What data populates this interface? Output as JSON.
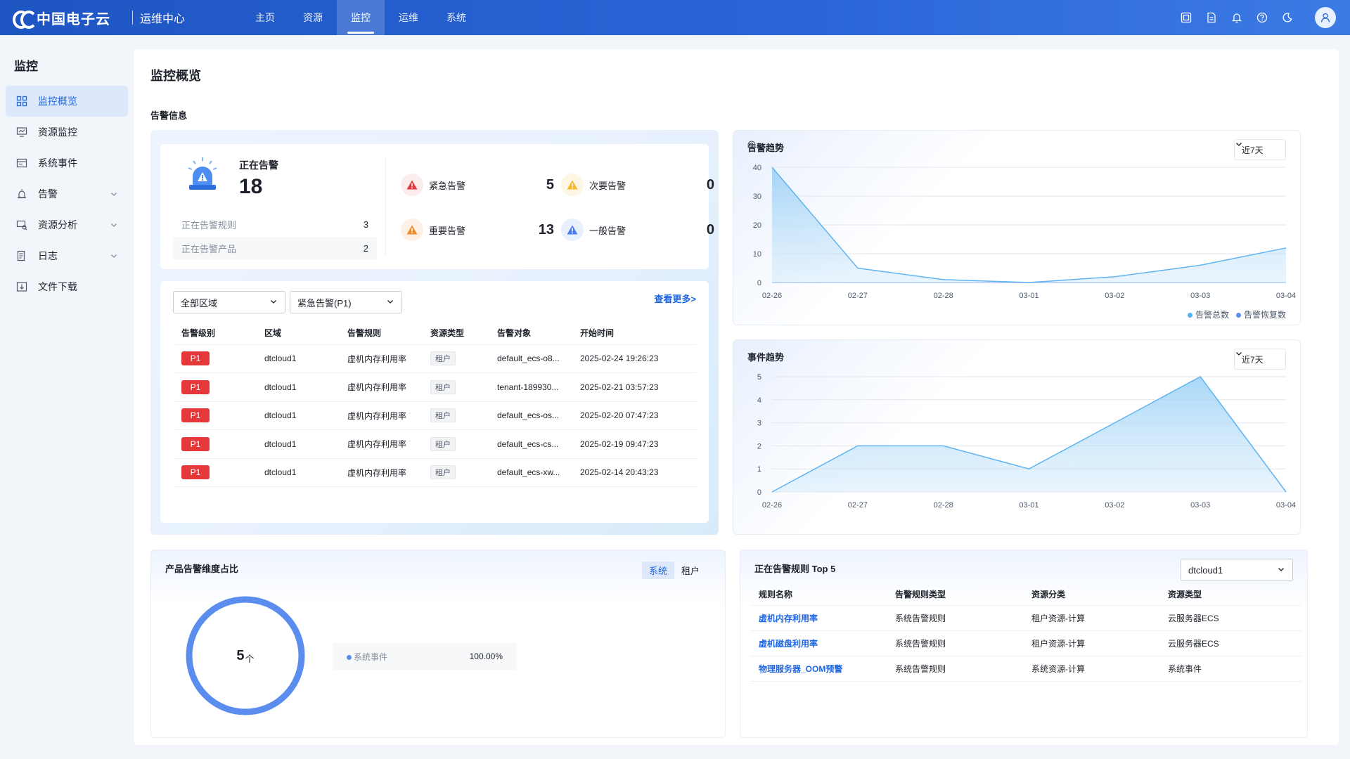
{
  "header": {
    "logo_text": "中国电子云",
    "app_name": "运维中心",
    "nav": [
      {
        "label": "主页",
        "active": false
      },
      {
        "label": "资源",
        "active": false
      },
      {
        "label": "监控",
        "active": true
      },
      {
        "label": "运维",
        "active": false
      },
      {
        "label": "系统",
        "active": false
      }
    ],
    "icons": [
      "screen-icon",
      "document-icon",
      "bell-icon",
      "help-icon",
      "moon-icon",
      "user-icon"
    ]
  },
  "sidebar": {
    "title": "监控",
    "items": [
      {
        "label": "监控概览",
        "icon": "grid-icon",
        "active": true,
        "expandable": false
      },
      {
        "label": "资源监控",
        "icon": "monitor-icon",
        "active": false,
        "expandable": false
      },
      {
        "label": "系统事件",
        "icon": "event-icon",
        "active": false,
        "expandable": false
      },
      {
        "label": "告警",
        "icon": "alarm-icon",
        "active": false,
        "expandable": true
      },
      {
        "label": "资源分析",
        "icon": "analysis-icon",
        "active": false,
        "expandable": true
      },
      {
        "label": "日志",
        "icon": "log-icon",
        "active": false,
        "expandable": true
      },
      {
        "label": "文件下载",
        "icon": "download-icon",
        "active": false,
        "expandable": false
      }
    ]
  },
  "page": {
    "title": "监控概览",
    "section_title": "告警信息"
  },
  "alert_summary": {
    "current_label": "正在告警",
    "current_count": "18",
    "rules_label": "正在告警规则",
    "rules_count": "3",
    "products_label": "正在告警产品",
    "products_count": "2",
    "levels": [
      {
        "name": "紧急告警",
        "value": "5",
        "color": "#e5383b"
      },
      {
        "name": "次要告警",
        "value": "0",
        "color": "#f5b82e"
      },
      {
        "name": "重要告警",
        "value": "13",
        "color": "#f08a24"
      },
      {
        "name": "一般告警",
        "value": "0",
        "color": "#4a7cf0"
      }
    ]
  },
  "alert_table": {
    "region_select": "全部区域",
    "level_select": "紧急告警(P1)",
    "more_link": "查看更多>",
    "columns": [
      "告警级别",
      "区域",
      "告警规则",
      "资源类型",
      "告警对象",
      "开始时间"
    ],
    "rows": [
      {
        "level": "P1",
        "region": "dtcloud1",
        "rule": "虚机内存利用率",
        "type": "租户",
        "object": "default_ecs-o8...",
        "time": "2025-02-24 19:26:23"
      },
      {
        "level": "P1",
        "region": "dtcloud1",
        "rule": "虚机内存利用率",
        "type": "租户",
        "object": "tenant-189930...",
        "time": "2025-02-21 03:57:23"
      },
      {
        "level": "P1",
        "region": "dtcloud1",
        "rule": "虚机内存利用率",
        "type": "租户",
        "object": "default_ecs-os...",
        "time": "2025-02-20 07:47:23"
      },
      {
        "level": "P1",
        "region": "dtcloud1",
        "rule": "虚机内存利用率",
        "type": "租户",
        "object": "default_ecs-cs...",
        "time": "2025-02-19 09:47:23"
      },
      {
        "level": "P1",
        "region": "dtcloud1",
        "rule": "虚机内存利用率",
        "type": "租户",
        "object": "default_ecs-xw...",
        "time": "2025-02-14 20:43:23"
      }
    ]
  },
  "alert_trend": {
    "title": "告警趋势",
    "range": "近7天",
    "legend": [
      {
        "name": "告警总数",
        "color": "#4fb3f2"
      },
      {
        "name": "告警恢复数",
        "color": "#5b8def"
      }
    ]
  },
  "event_trend": {
    "title": "事件趋势",
    "range": "近7天"
  },
  "chart_data": [
    {
      "type": "area",
      "title": "告警趋势",
      "x": [
        "02-26",
        "02-27",
        "02-28",
        "03-01",
        "03-02",
        "03-03",
        "03-04"
      ],
      "series": [
        {
          "name": "告警总数",
          "values": [
            40,
            5,
            1,
            0,
            2,
            6,
            12
          ]
        },
        {
          "name": "告警恢复数",
          "values": [
            0,
            0,
            0,
            0,
            0,
            0,
            0
          ]
        }
      ],
      "yticks": [
        0,
        10,
        20,
        30,
        40
      ],
      "ylim": [
        0,
        40
      ],
      "grid": true,
      "legend": "bottom-right"
    },
    {
      "type": "area",
      "title": "事件趋势",
      "x": [
        "02-26",
        "02-27",
        "02-28",
        "03-01",
        "03-02",
        "03-03",
        "03-04"
      ],
      "series": [
        {
          "values": [
            0,
            2,
            2,
            1,
            3,
            5,
            0
          ]
        }
      ],
      "yticks": [
        0,
        1,
        2,
        3,
        4,
        5
      ],
      "ylim": [
        0,
        5
      ],
      "grid": true
    }
  ],
  "product_ratio": {
    "title": "产品告警维度占比",
    "tabs": [
      {
        "label": "系统",
        "active": true
      },
      {
        "label": "租户",
        "active": false
      }
    ],
    "total": "5",
    "unit": "个",
    "items": [
      {
        "name": "系统事件",
        "percent": "100.00%",
        "color": "#5b8def"
      }
    ]
  },
  "top_rules": {
    "title": "正在告警规则 Top 5",
    "region_select": "dtcloud1",
    "columns": [
      "规则名称",
      "告警规则类型",
      "资源分类",
      "资源类型"
    ],
    "rows": [
      {
        "name": "虚机内存利用率",
        "rule_type": "系统告警规则",
        "category": "租户资源-计算",
        "resource": "云服务器ECS"
      },
      {
        "name": "虚机磁盘利用率",
        "rule_type": "系统告警规则",
        "category": "租户资源-计算",
        "resource": "云服务器ECS"
      },
      {
        "name": "物理服务器_OOM预警",
        "rule_type": "系统告警规则",
        "category": "系统资源-计算",
        "resource": "系统事件"
      }
    ]
  }
}
